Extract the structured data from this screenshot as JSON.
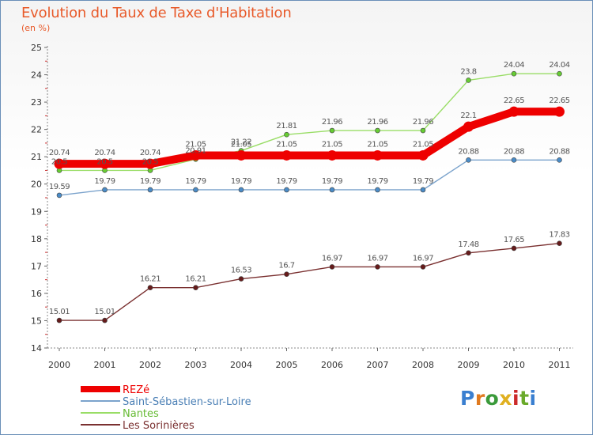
{
  "title": "Evolution du Taux de Taxe d'Habitation",
  "subtitle": "(en %)",
  "logo_text": "Proxiti",
  "chart_data": {
    "type": "line",
    "ylim": [
      14,
      25
    ],
    "yticks": [
      14,
      15,
      16,
      17,
      18,
      19,
      20,
      21,
      22,
      23,
      24,
      25
    ],
    "x": [
      "2000",
      "2001",
      "2002",
      "2003",
      "2004",
      "2005",
      "2006",
      "2007",
      "2008",
      "2009",
      "2010",
      "2011"
    ],
    "grid": false,
    "legend_position": "bottom-left",
    "series": [
      {
        "name": "REZé",
        "color": "#ee0000",
        "marker_color": "#ee0000",
        "values": [
          20.74,
          20.74,
          20.74,
          21.05,
          21.05,
          21.05,
          21.05,
          21.05,
          21.05,
          22.1,
          22.65,
          22.65
        ],
        "labels": [
          "20.74",
          "20.74",
          "20.74",
          "21.05",
          "21.05",
          "21.05",
          "21.05",
          "21.05",
          "21.05",
          "22.1",
          "22.65",
          "22.65"
        ]
      },
      {
        "name": "Saint-Sébastien-sur-Loire",
        "color": "#7ba3cc",
        "marker_color": "#4a8cc8",
        "values": [
          19.59,
          19.79,
          19.79,
          19.79,
          19.79,
          19.79,
          19.79,
          19.79,
          19.79,
          20.88,
          20.88,
          20.88
        ],
        "labels": [
          "19.59",
          "19.79",
          "19.79",
          "19.79",
          "19.79",
          "19.79",
          "19.79",
          "19.79",
          "19.79",
          "20.88",
          "20.88",
          "20.88"
        ]
      },
      {
        "name": "Nantes",
        "color": "#99dd66",
        "marker_color": "#66cc33",
        "values": [
          20.5,
          20.5,
          20.5,
          20.91,
          21.22,
          21.81,
          21.96,
          21.96,
          21.96,
          23.8,
          24.04,
          24.04
        ],
        "labels": [
          "20.5",
          "20.5",
          "20.5",
          "20.91",
          "21.22",
          "21.81",
          "21.96",
          "21.96",
          "21.96",
          "23.8",
          "24.04",
          "24.04"
        ]
      },
      {
        "name": "Les Sorinières",
        "color": "#7a3030",
        "marker_color": "#661b1b",
        "values": [
          15.01,
          15.01,
          16.21,
          16.21,
          16.53,
          16.7,
          16.97,
          16.97,
          16.97,
          17.48,
          17.65,
          17.83
        ],
        "labels": [
          "15.01",
          "15.01",
          "16.21",
          "16.21",
          "16.53",
          "16.7",
          "16.97",
          "16.97",
          "16.97",
          "17.48",
          "17.65",
          "17.83"
        ]
      }
    ]
  }
}
